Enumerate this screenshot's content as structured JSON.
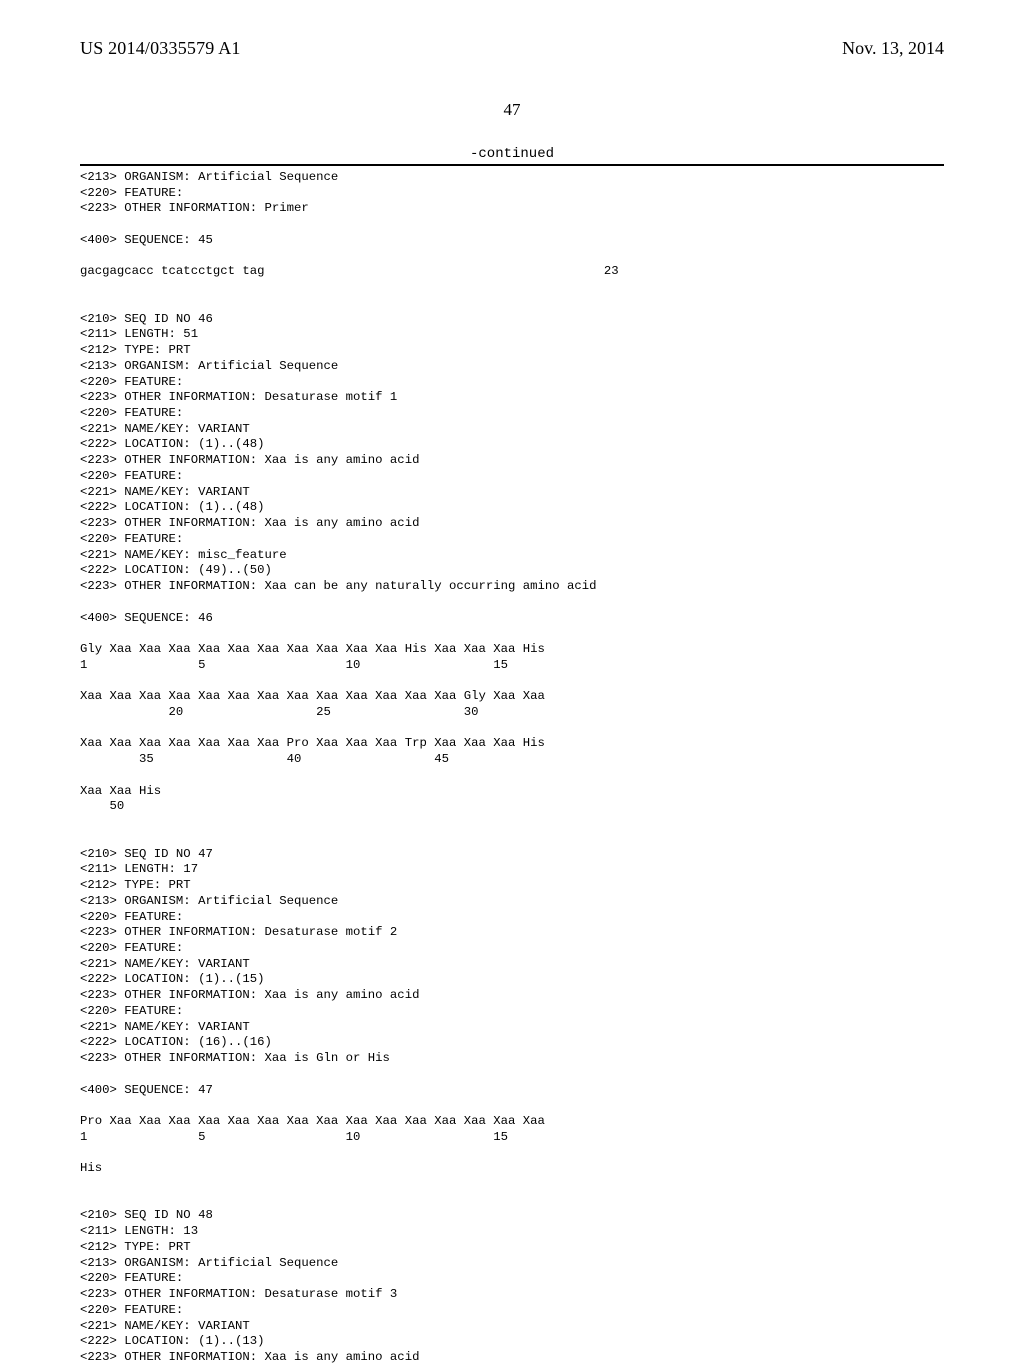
{
  "header": {
    "pub_number": "US 2014/0335579 A1",
    "pub_date": "Nov. 13, 2014",
    "page_number": "47",
    "continued_label": "-continued"
  },
  "sequence_text": "<213> ORGANISM: Artificial Sequence\n<220> FEATURE:\n<223> OTHER INFORMATION: Primer\n\n<400> SEQUENCE: 45\n\ngacgagcacc tcatcctgct tag                                              23\n\n\n<210> SEQ ID NO 46\n<211> LENGTH: 51\n<212> TYPE: PRT\n<213> ORGANISM: Artificial Sequence\n<220> FEATURE:\n<223> OTHER INFORMATION: Desaturase motif 1\n<220> FEATURE:\n<221> NAME/KEY: VARIANT\n<222> LOCATION: (1)..(48)\n<223> OTHER INFORMATION: Xaa is any amino acid\n<220> FEATURE:\n<221> NAME/KEY: VARIANT\n<222> LOCATION: (1)..(48)\n<223> OTHER INFORMATION: Xaa is any amino acid\n<220> FEATURE:\n<221> NAME/KEY: misc_feature\n<222> LOCATION: (49)..(50)\n<223> OTHER INFORMATION: Xaa can be any naturally occurring amino acid\n\n<400> SEQUENCE: 46\n\nGly Xaa Xaa Xaa Xaa Xaa Xaa Xaa Xaa Xaa Xaa His Xaa Xaa Xaa His\n1               5                   10                  15\n\nXaa Xaa Xaa Xaa Xaa Xaa Xaa Xaa Xaa Xaa Xaa Xaa Xaa Gly Xaa Xaa\n            20                  25                  30\n\nXaa Xaa Xaa Xaa Xaa Xaa Xaa Pro Xaa Xaa Xaa Trp Xaa Xaa Xaa His\n        35                  40                  45\n\nXaa Xaa His\n    50\n\n\n<210> SEQ ID NO 47\n<211> LENGTH: 17\n<212> TYPE: PRT\n<213> ORGANISM: Artificial Sequence\n<220> FEATURE:\n<223> OTHER INFORMATION: Desaturase motif 2\n<220> FEATURE:\n<221> NAME/KEY: VARIANT\n<222> LOCATION: (1)..(15)\n<223> OTHER INFORMATION: Xaa is any amino acid\n<220> FEATURE:\n<221> NAME/KEY: VARIANT\n<222> LOCATION: (16)..(16)\n<223> OTHER INFORMATION: Xaa is Gln or His\n\n<400> SEQUENCE: 47\n\nPro Xaa Xaa Xaa Xaa Xaa Xaa Xaa Xaa Xaa Xaa Xaa Xaa Xaa Xaa Xaa\n1               5                   10                  15\n\nHis\n\n\n<210> SEQ ID NO 48\n<211> LENGTH: 13\n<212> TYPE: PRT\n<213> ORGANISM: Artificial Sequence\n<220> FEATURE:\n<223> OTHER INFORMATION: Desaturase motif 3\n<220> FEATURE:\n<221> NAME/KEY: VARIANT\n<222> LOCATION: (1)..(13)\n<223> OTHER INFORMATION: Xaa is any amino acid"
}
